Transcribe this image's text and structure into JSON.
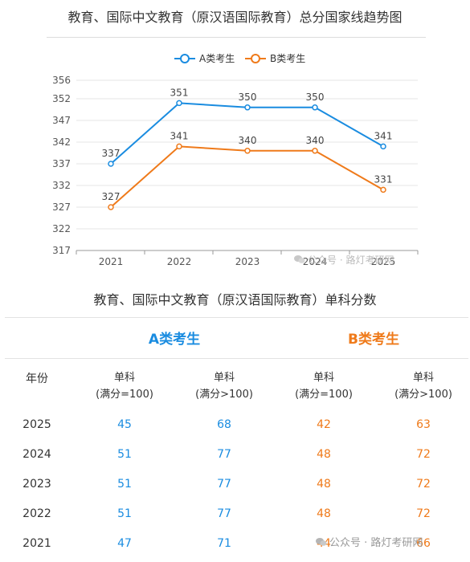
{
  "chart_data": {
    "type": "line",
    "title": "教育、国际中文教育（原汉语国际教育）总分国家线趋势图",
    "categories": [
      "2021",
      "2022",
      "2023",
      "2024",
      "2025"
    ],
    "series": [
      {
        "name": "A类考生",
        "color": "#1a8ce0",
        "values": [
          337,
          351,
          350,
          350,
          341
        ]
      },
      {
        "name": "B类考生",
        "color": "#ef7a1a",
        "values": [
          327,
          341,
          340,
          340,
          331
        ]
      }
    ],
    "yticks": [
      "356",
      "352",
      "347",
      "342",
      "337",
      "332",
      "327",
      "322",
      "317"
    ],
    "ylim": [
      317,
      356
    ],
    "legend_position": "top-center",
    "grid": true
  },
  "watermark": {
    "chart": "公众号 · 路灯考研网",
    "table": "公众号 · 路灯考研网"
  },
  "table": {
    "title": "教育、国际中文教育（原汉语国际教育）单科分数",
    "group_a": "A类考生",
    "group_b": "B类考生",
    "year_header": "年份",
    "headers": [
      {
        "line1": "单科",
        "line2": "(满分=100)"
      },
      {
        "line1": "单科",
        "line2": "(满分>100)"
      },
      {
        "line1": "单科",
        "line2": "(满分=100)"
      },
      {
        "line1": "单科",
        "line2": "(满分>100)"
      }
    ],
    "rows": [
      {
        "year": "2025",
        "a1": "45",
        "a2": "68",
        "b1": "42",
        "b2": "63"
      },
      {
        "year": "2024",
        "a1": "51",
        "a2": "77",
        "b1": "48",
        "b2": "72"
      },
      {
        "year": "2023",
        "a1": "51",
        "a2": "77",
        "b1": "48",
        "b2": "72"
      },
      {
        "year": "2022",
        "a1": "51",
        "a2": "77",
        "b1": "48",
        "b2": "72"
      },
      {
        "year": "2021",
        "a1": "47",
        "a2": "71",
        "b1": "44",
        "b2": "66"
      }
    ],
    "colors": {
      "a": "#1a8ce0",
      "b": "#ef7a1a"
    }
  }
}
